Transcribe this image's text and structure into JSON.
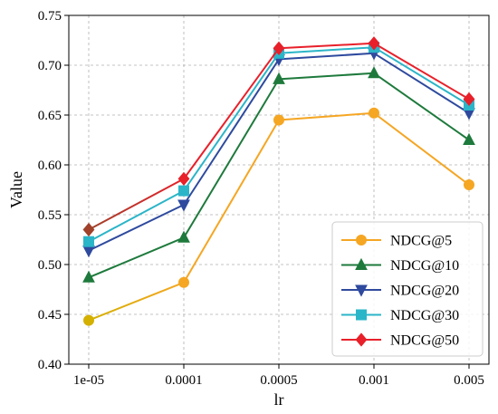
{
  "chart_data": {
    "type": "line",
    "title": "",
    "xlabel": "lr",
    "ylabel": "Value",
    "categories": [
      "1e-05",
      "0.0001",
      "0.0005",
      "0.001",
      "0.005"
    ],
    "ylim": [
      0.4,
      0.75
    ],
    "yticks": [
      "0.40",
      "0.45",
      "0.50",
      "0.55",
      "0.60",
      "0.65",
      "0.70",
      "0.75"
    ],
    "grid": true,
    "legend_position": "bottom-right",
    "series": [
      {
        "name": "NDCG@5",
        "marker": "circle",
        "values": [
          0.444,
          0.482,
          0.645,
          0.652,
          0.58
        ],
        "color": "#f5a623",
        "color_start": "#d4b000"
      },
      {
        "name": "NDCG@10",
        "marker": "triangle-up",
        "values": [
          0.487,
          0.527,
          0.686,
          0.692,
          0.625
        ],
        "color": "#1e7a3c"
      },
      {
        "name": "NDCG@20",
        "marker": "triangle-down",
        "values": [
          0.514,
          0.56,
          0.706,
          0.712,
          0.652
        ],
        "color": "#2e4a9e"
      },
      {
        "name": "NDCG@30",
        "marker": "square",
        "values": [
          0.523,
          0.574,
          0.712,
          0.718,
          0.66
        ],
        "color": "#2bb5c8"
      },
      {
        "name": "NDCG@50",
        "marker": "diamond",
        "values": [
          0.535,
          0.586,
          0.717,
          0.722,
          0.666
        ],
        "color": "#e8202a",
        "color_start": "#a0412a"
      }
    ]
  }
}
